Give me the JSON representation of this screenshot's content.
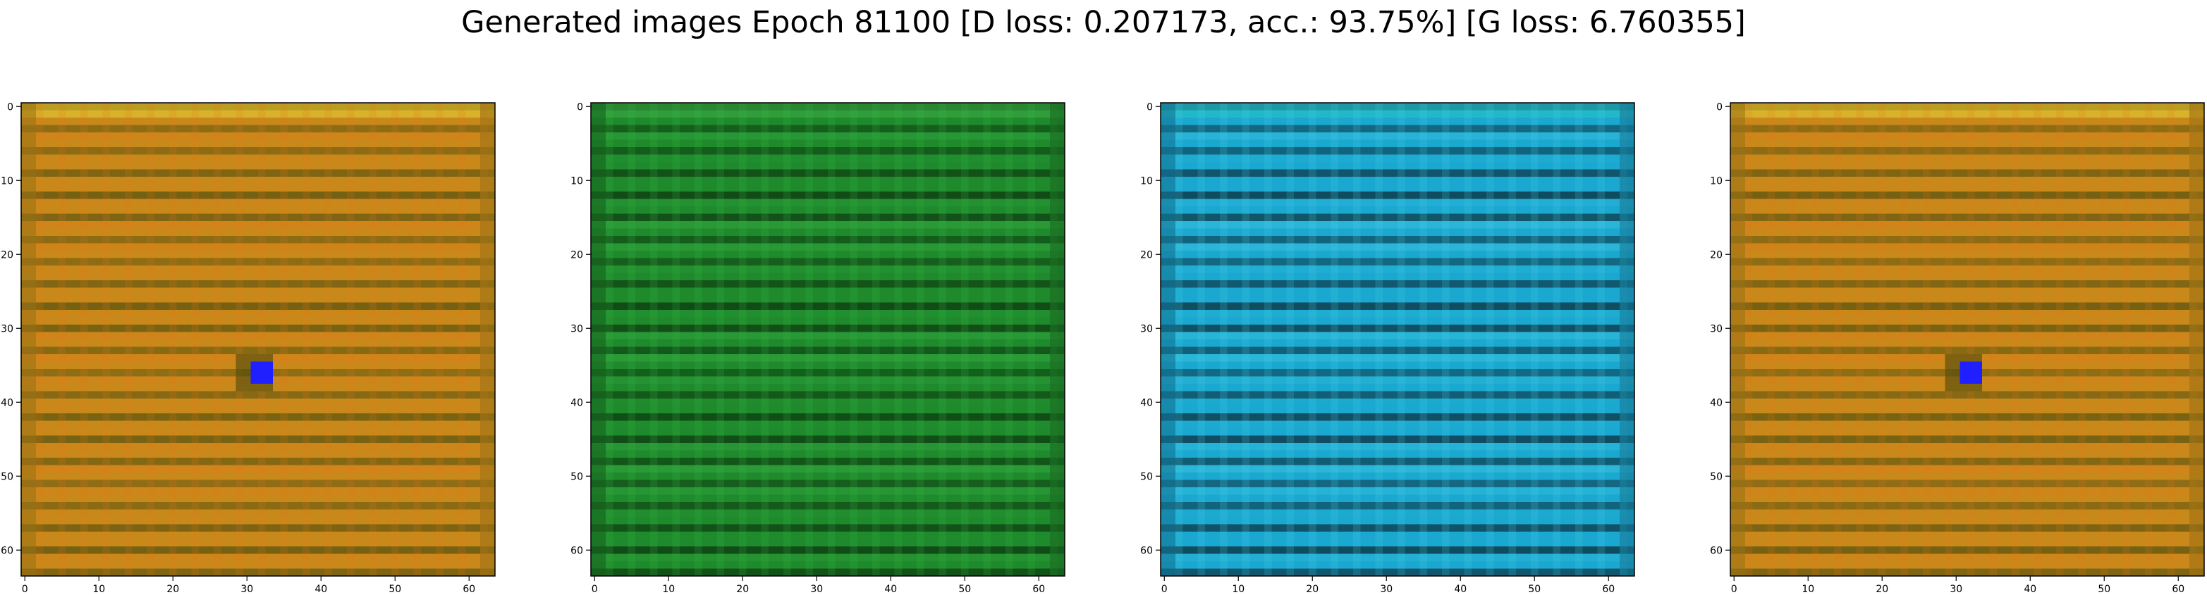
{
  "title": "Generated images Epoch 81100 [D loss: 0.207173, acc.: 93.75%] [G loss: 6.760355]",
  "chart_data": [
    {
      "type": "heatmap",
      "name": "orange",
      "xlim": [
        0,
        63
      ],
      "ylim": [
        63,
        0
      ],
      "x_ticks": [
        0,
        10,
        20,
        30,
        40,
        50,
        60
      ],
      "y_ticks": [
        0,
        10,
        20,
        30,
        40,
        50,
        60
      ],
      "grid": false,
      "base_color": "#c8891a",
      "stripe_color": "#e07a18",
      "dark_color": "#4a4a0e",
      "border_top_color": "#d8b22a",
      "spot_color": "#2020ff",
      "spot_xy": [
        32,
        36
      ]
    },
    {
      "type": "heatmap",
      "name": "green",
      "xlim": [
        0,
        63
      ],
      "ylim": [
        63,
        0
      ],
      "x_ticks": [
        0,
        10,
        20,
        30,
        40,
        50,
        60
      ],
      "y_ticks": [
        0,
        10,
        20,
        30,
        40,
        50,
        60
      ],
      "grid": false,
      "base_color": "#1e8a2c",
      "stripe_color": "#3fb84a",
      "dark_color": "#0a2a0a",
      "border_top_color": "#2f9e3a",
      "spot_color": "",
      "spot_xy": []
    },
    {
      "type": "heatmap",
      "name": "cyan",
      "xlim": [
        0,
        63
      ],
      "ylim": [
        63,
        0
      ],
      "x_ticks": [
        0,
        10,
        20,
        30,
        40,
        50,
        60
      ],
      "y_ticks": [
        0,
        10,
        20,
        30,
        40,
        50,
        60
      ],
      "grid": false,
      "base_color": "#1aa8d0",
      "stripe_color": "#4cd0e8",
      "dark_color": "#0a1a24",
      "border_top_color": "#22b8c8",
      "spot_color": "",
      "spot_xy": []
    },
    {
      "type": "heatmap",
      "name": "orange-2",
      "xlim": [
        0,
        63
      ],
      "ylim": [
        63,
        0
      ],
      "x_ticks": [
        0,
        10,
        20,
        30,
        40,
        50,
        60
      ],
      "y_ticks": [
        0,
        10,
        20,
        30,
        40,
        50,
        60
      ],
      "grid": false,
      "base_color": "#c8891a",
      "stripe_color": "#e07a18",
      "dark_color": "#4a4a0e",
      "border_top_color": "#d8b22a",
      "spot_color": "#2020ff",
      "spot_xy": [
        32,
        36
      ]
    }
  ]
}
